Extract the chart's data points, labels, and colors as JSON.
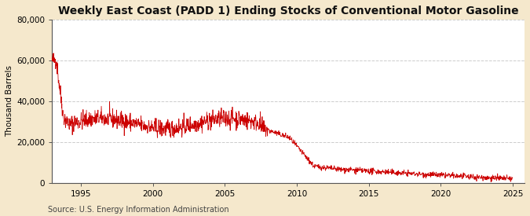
{
  "title": "Weekly East Coast (PADD 1) Ending Stocks of Conventional Motor Gasoline",
  "ylabel": "Thousand Barrels",
  "source": "Source: U.S. Energy Information Administration",
  "line_color": "#cc0000",
  "figure_bg_color": "#f5e8cc",
  "plot_bg_color": "#ffffff",
  "grid_color": "#cccccc",
  "ylim": [
    0,
    80000
  ],
  "yticks": [
    0,
    20000,
    40000,
    60000,
    80000
  ],
  "ytick_labels": [
    "0",
    "20,000",
    "40,000",
    "60,000",
    "80,000"
  ],
  "xticks": [
    1995,
    2000,
    2005,
    2010,
    2015,
    2020,
    2025
  ],
  "title_fontsize": 10,
  "ylabel_fontsize": 7.5,
  "tick_fontsize": 7.5,
  "source_fontsize": 7
}
